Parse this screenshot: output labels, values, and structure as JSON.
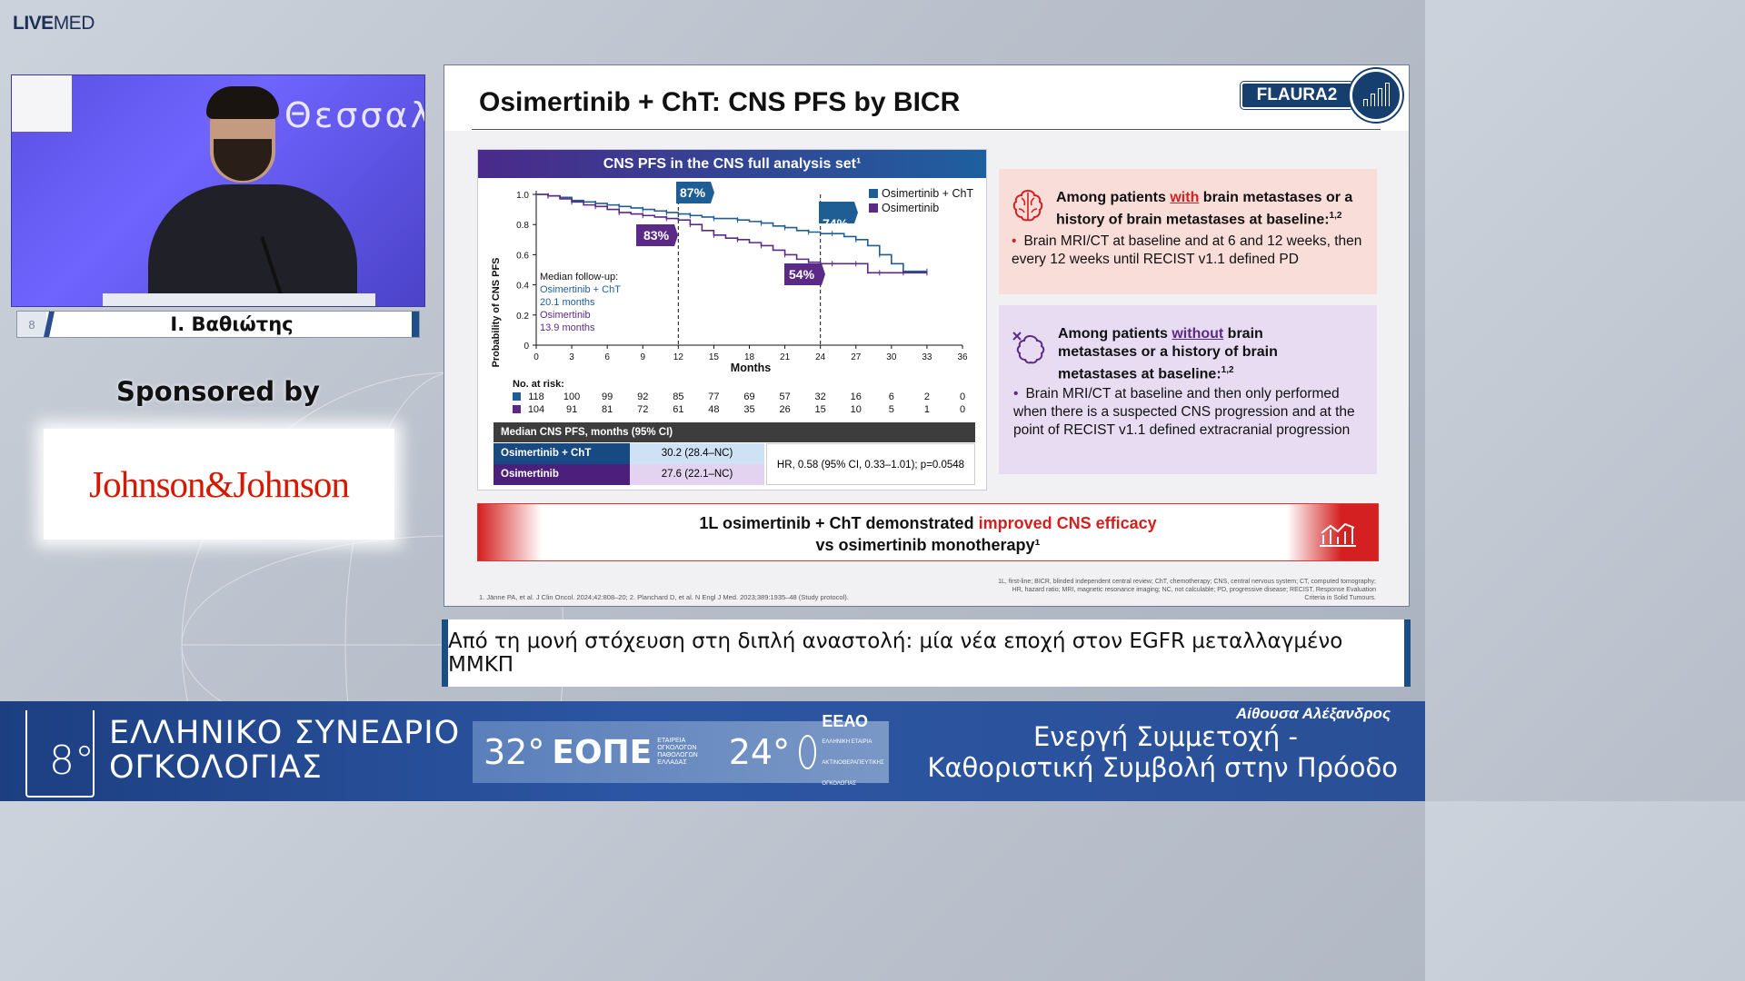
{
  "brand": {
    "logo_bold": "LIVE",
    "logo_light": "MED"
  },
  "video": {
    "background_text": "Θεσσαλ",
    "speaker_name": "Ι. Βαθιώτης"
  },
  "sponsor": {
    "label": "Sponsored by",
    "name": "Johnson&Johnson"
  },
  "slide": {
    "title": "Osimertinib + ChT: CNS PFS by BICR",
    "badge": "FLAURA2",
    "chart_header": "CNS PFS in the CNS full analysis set¹",
    "legend": [
      "Osimertinib + ChT",
      "Osimertinib"
    ],
    "callouts": [
      "87%",
      "83%",
      "74%",
      "54%"
    ],
    "followup": {
      "heading": "Median follow-up:",
      "a_label": "Osimertinib + ChT",
      "a_value": "20.1 months",
      "b_label": "Osimertinib",
      "b_value": "13.9 months"
    },
    "risk_label": "No. at risk:",
    "box1": {
      "pre": "Among patients ",
      "highlight": "with",
      "post": " brain metastases or a history of brain metastases at baseline:",
      "sup": "1,2",
      "bullet": "Brain MRI/CT at baseline and at 6 and 12 weeks, then every 12 weeks until RECIST v1.1 defined PD"
    },
    "box2": {
      "pre": "Among patients ",
      "highlight": "without",
      "post": " brain metastases or a history of brain metastases at baseline:",
      "sup": "1,2",
      "bullet": "Brain MRI/CT at baseline and then only performed when there is a suspected CNS progression and at the point of RECIST v1.1 defined extracranial progression"
    },
    "median_table": {
      "header": "Median CNS PFS, months (95% CI)",
      "row1_label": "Osimertinib + ChT",
      "row1_value": "30.2 (28.4–NC)",
      "row2_label": "Osimertinib",
      "row2_value": "27.6 (22.1–NC)",
      "hr": "HR, 0.58 (95% CI, 0.33–1.01); p=0.0548"
    },
    "conclusion": {
      "line1_pre": "1L osimertinib + ChT demonstrated ",
      "line1_red": "improved CNS efficacy",
      "line2": "vs osimertinib monotherapy¹"
    },
    "footnote_refs": "1. Jänne PA, et al. J Clin Oncol. 2024;42:808–20; 2. Planchard D, et al. N Engl J Med. 2023;389:1935–48 (Study protocol).",
    "footnote_abbr": "1L, first-line; BICR, blinded independent central review; ChT, chemotherapy; CNS, central nervous system; CT, computed tomography; HR, hazard ratio; MRI, magnetic resonance imaging; NC, not calculable; PD, progressive disease; RECIST, Response Evaluation Criteria in Solid Tumours."
  },
  "chart_data": {
    "type": "line",
    "title": "CNS PFS in the CNS full analysis set¹",
    "xlabel": "Months",
    "ylabel": "Probability of CNS PFS",
    "xlim": [
      0,
      36
    ],
    "ylim": [
      0,
      1.0
    ],
    "xticks": [
      0,
      3,
      6,
      9,
      12,
      15,
      18,
      21,
      24,
      27,
      30,
      33,
      36
    ],
    "yticks": [
      "0",
      "0.2",
      "0.4",
      "0.6",
      "0.8",
      "1.0"
    ],
    "series": [
      {
        "name": "Osimertinib + ChT",
        "color": "#1f5d95",
        "x": [
          0,
          1,
          2,
          3,
          4,
          5,
          6,
          7,
          8,
          9,
          10,
          11,
          12,
          13,
          14,
          15,
          16,
          17,
          18,
          19,
          20,
          21,
          22,
          23,
          24,
          25,
          26,
          27,
          28,
          29,
          30,
          31,
          32,
          33
        ],
        "y": [
          1.0,
          0.99,
          0.98,
          0.96,
          0.95,
          0.94,
          0.93,
          0.92,
          0.91,
          0.9,
          0.89,
          0.88,
          0.87,
          0.86,
          0.85,
          0.84,
          0.84,
          0.83,
          0.82,
          0.81,
          0.79,
          0.78,
          0.76,
          0.75,
          0.74,
          0.74,
          0.72,
          0.7,
          0.66,
          0.6,
          0.54,
          0.49,
          0.49,
          0.49
        ]
      },
      {
        "name": "Osimertinib",
        "color": "#5b2a86",
        "x": [
          0,
          1,
          2,
          3,
          4,
          5,
          6,
          7,
          8,
          9,
          10,
          11,
          12,
          13,
          14,
          15,
          16,
          17,
          18,
          19,
          20,
          21,
          22,
          23,
          24,
          25,
          26,
          27,
          28,
          29,
          30,
          31,
          32,
          33
        ],
        "y": [
          1.0,
          0.99,
          0.97,
          0.95,
          0.93,
          0.92,
          0.9,
          0.88,
          0.87,
          0.86,
          0.85,
          0.84,
          0.83,
          0.8,
          0.76,
          0.73,
          0.71,
          0.7,
          0.68,
          0.66,
          0.63,
          0.6,
          0.57,
          0.55,
          0.54,
          0.54,
          0.54,
          0.54,
          0.48,
          0.48,
          0.48,
          0.48,
          0.48,
          0.48
        ]
      }
    ],
    "risk_table": {
      "x": [
        0,
        3,
        6,
        9,
        12,
        15,
        18,
        21,
        24,
        27,
        30,
        33,
        36
      ],
      "osimertinib_cht": [
        118,
        100,
        99,
        92,
        85,
        77,
        69,
        57,
        32,
        16,
        6,
        2,
        0
      ],
      "osimertinib": [
        104,
        91,
        81,
        72,
        61,
        48,
        35,
        26,
        15,
        10,
        5,
        1,
        0
      ]
    },
    "reference_lines_months": [
      12,
      24
    ]
  },
  "subtitle": "Από τη μονή στόχευση στη διπλή αναστολή: μία νέα εποχή στον EGFR μεταλλαγμένο ΜΜΚΠ",
  "footer": {
    "conf_number": "8°",
    "conf_line1": "ΕΛΛΗΝΙΚΟ ΣΥΝΕΔΡΙΟ",
    "conf_line2": "ΟΓΚΟΛΟΓΙΑΣ",
    "mid_n1": "32°",
    "mid_name1": "ΕΟΠΕ",
    "mid_small1": "ΕΤΑΙΡΕΙΑ ΟΓΚΟΛΟΓΩΝ ΠΑΘΟΛΟΓΩΝ ΕΛΛΑΔΑΣ",
    "mid_n2": "24°",
    "mid_name2": "ΕΕΑΟ",
    "mid_small2": "ΕΛΛΗΝΙΚΗ ΕΤΑΙΡΙΑ ΑΚΤΙΝΟΘΕΡΑΠΕΥΤΙΚΗΣ ΟΓΚΟΛΟΓΙΑΣ",
    "hall": "Αίθουσα Αλέξανδρος",
    "tagline1": "Ενεργή Συμμετοχή -",
    "tagline2": "Καθοριστική Συμβολή στην Πρόοδο"
  }
}
